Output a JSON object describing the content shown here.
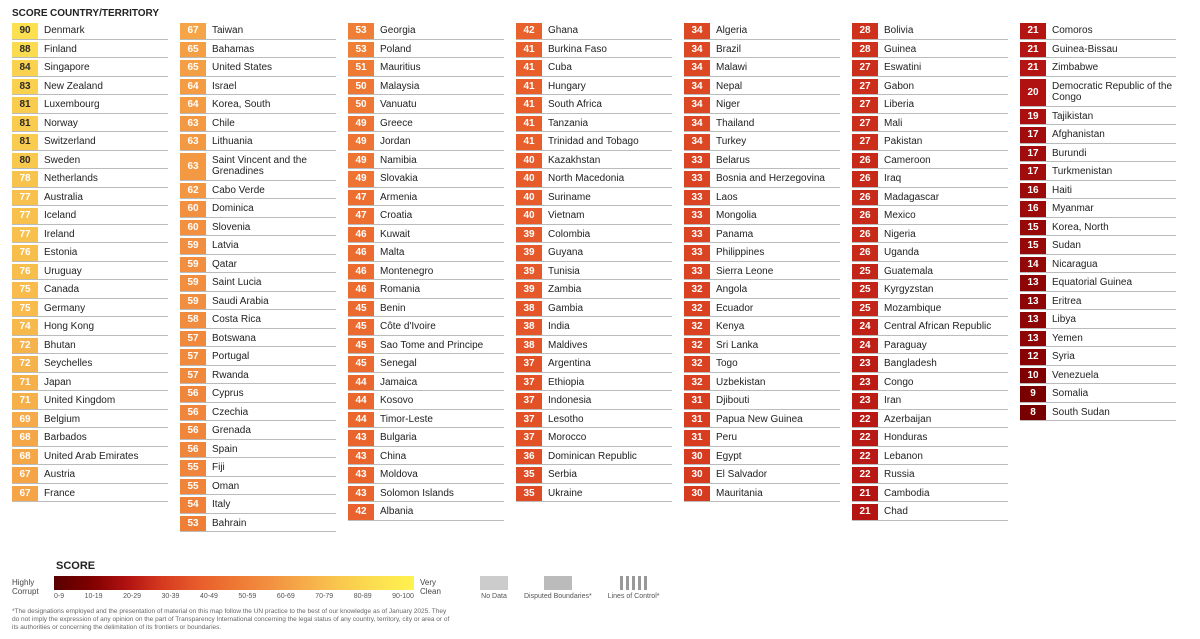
{
  "header": {
    "score": "SCORE",
    "country": "COUNTRY/TERRITORY"
  },
  "colorStops": [
    {
      "t": 0,
      "c": "#5a0000"
    },
    {
      "t": 10,
      "c": "#7e0000"
    },
    {
      "t": 20,
      "c": "#b01111"
    },
    {
      "t": 30,
      "c": "#d63a1f"
    },
    {
      "t": 40,
      "c": "#e85c2b"
    },
    {
      "t": 50,
      "c": "#ee7733"
    },
    {
      "t": 60,
      "c": "#f29040"
    },
    {
      "t": 70,
      "c": "#f6ad4a"
    },
    {
      "t": 80,
      "c": "#f9c94e"
    },
    {
      "t": 90,
      "c": "#fce050"
    },
    {
      "t": 100,
      "c": "#fff34f"
    }
  ],
  "scoreTextDarkThreshold": 80,
  "darkText": "#2a2a2a",
  "columns": [
    [
      {
        "s": 90,
        "c": "Denmark"
      },
      {
        "s": 88,
        "c": "Finland"
      },
      {
        "s": 84,
        "c": "Singapore"
      },
      {
        "s": 83,
        "c": "New Zealand"
      },
      {
        "s": 81,
        "c": "Luxembourg"
      },
      {
        "s": 81,
        "c": "Norway"
      },
      {
        "s": 81,
        "c": "Switzerland"
      },
      {
        "s": 80,
        "c": "Sweden"
      },
      {
        "s": 78,
        "c": "Netherlands"
      },
      {
        "s": 77,
        "c": "Australia"
      },
      {
        "s": 77,
        "c": "Iceland"
      },
      {
        "s": 77,
        "c": "Ireland"
      },
      {
        "s": 76,
        "c": "Estonia"
      },
      {
        "s": 76,
        "c": "Uruguay"
      },
      {
        "s": 75,
        "c": "Canada"
      },
      {
        "s": 75,
        "c": "Germany"
      },
      {
        "s": 74,
        "c": "Hong Kong"
      },
      {
        "s": 72,
        "c": "Bhutan"
      },
      {
        "s": 72,
        "c": "Seychelles"
      },
      {
        "s": 71,
        "c": "Japan"
      },
      {
        "s": 71,
        "c": "United Kingdom"
      },
      {
        "s": 69,
        "c": "Belgium"
      },
      {
        "s": 68,
        "c": "Barbados"
      },
      {
        "s": 68,
        "c": "United Arab Emirates"
      },
      {
        "s": 67,
        "c": "Austria"
      },
      {
        "s": 67,
        "c": "France"
      }
    ],
    [
      {
        "s": 67,
        "c": "Taiwan"
      },
      {
        "s": 65,
        "c": "Bahamas"
      },
      {
        "s": 65,
        "c": "United States"
      },
      {
        "s": 64,
        "c": "Israel"
      },
      {
        "s": 64,
        "c": "Korea, South"
      },
      {
        "s": 63,
        "c": "Chile"
      },
      {
        "s": 63,
        "c": "Lithuania"
      },
      {
        "s": 63,
        "c": "Saint Vincent and the Grenadines"
      },
      {
        "s": 62,
        "c": "Cabo Verde"
      },
      {
        "s": 60,
        "c": "Dominica"
      },
      {
        "s": 60,
        "c": "Slovenia"
      },
      {
        "s": 59,
        "c": "Latvia"
      },
      {
        "s": 59,
        "c": "Qatar"
      },
      {
        "s": 59,
        "c": "Saint Lucia"
      },
      {
        "s": 59,
        "c": "Saudi Arabia"
      },
      {
        "s": 58,
        "c": "Costa Rica"
      },
      {
        "s": 57,
        "c": "Botswana"
      },
      {
        "s": 57,
        "c": "Portugal"
      },
      {
        "s": 57,
        "c": "Rwanda"
      },
      {
        "s": 56,
        "c": "Cyprus"
      },
      {
        "s": 56,
        "c": "Czechia"
      },
      {
        "s": 56,
        "c": "Grenada"
      },
      {
        "s": 56,
        "c": "Spain"
      },
      {
        "s": 55,
        "c": "Fiji"
      },
      {
        "s": 55,
        "c": "Oman"
      },
      {
        "s": 54,
        "c": "Italy"
      },
      {
        "s": 53,
        "c": "Bahrain"
      }
    ],
    [
      {
        "s": 53,
        "c": "Georgia"
      },
      {
        "s": 53,
        "c": "Poland"
      },
      {
        "s": 51,
        "c": "Mauritius"
      },
      {
        "s": 50,
        "c": "Malaysia"
      },
      {
        "s": 50,
        "c": "Vanuatu"
      },
      {
        "s": 49,
        "c": "Greece"
      },
      {
        "s": 49,
        "c": "Jordan"
      },
      {
        "s": 49,
        "c": "Namibia"
      },
      {
        "s": 49,
        "c": "Slovakia"
      },
      {
        "s": 47,
        "c": "Armenia"
      },
      {
        "s": 47,
        "c": "Croatia"
      },
      {
        "s": 46,
        "c": "Kuwait"
      },
      {
        "s": 46,
        "c": "Malta"
      },
      {
        "s": 46,
        "c": "Montenegro"
      },
      {
        "s": 46,
        "c": "Romania"
      },
      {
        "s": 45,
        "c": "Benin"
      },
      {
        "s": 45,
        "c": "Côte d'Ivoire"
      },
      {
        "s": 45,
        "c": "Sao Tome and Principe"
      },
      {
        "s": 45,
        "c": "Senegal"
      },
      {
        "s": 44,
        "c": "Jamaica"
      },
      {
        "s": 44,
        "c": "Kosovo"
      },
      {
        "s": 44,
        "c": "Timor-Leste"
      },
      {
        "s": 43,
        "c": "Bulgaria"
      },
      {
        "s": 43,
        "c": "China"
      },
      {
        "s": 43,
        "c": "Moldova"
      },
      {
        "s": 43,
        "c": "Solomon Islands"
      },
      {
        "s": 42,
        "c": "Albania"
      }
    ],
    [
      {
        "s": 42,
        "c": "Ghana"
      },
      {
        "s": 41,
        "c": "Burkina Faso"
      },
      {
        "s": 41,
        "c": "Cuba"
      },
      {
        "s": 41,
        "c": "Hungary"
      },
      {
        "s": 41,
        "c": "South Africa"
      },
      {
        "s": 41,
        "c": "Tanzania"
      },
      {
        "s": 41,
        "c": "Trinidad and Tobago"
      },
      {
        "s": 40,
        "c": "Kazakhstan"
      },
      {
        "s": 40,
        "c": "North Macedonia"
      },
      {
        "s": 40,
        "c": "Suriname"
      },
      {
        "s": 40,
        "c": "Vietnam"
      },
      {
        "s": 39,
        "c": "Colombia"
      },
      {
        "s": 39,
        "c": "Guyana"
      },
      {
        "s": 39,
        "c": "Tunisia"
      },
      {
        "s": 39,
        "c": "Zambia"
      },
      {
        "s": 38,
        "c": "Gambia"
      },
      {
        "s": 38,
        "c": "India"
      },
      {
        "s": 38,
        "c": "Maldives"
      },
      {
        "s": 37,
        "c": "Argentina"
      },
      {
        "s": 37,
        "c": "Ethiopia"
      },
      {
        "s": 37,
        "c": "Indonesia"
      },
      {
        "s": 37,
        "c": "Lesotho"
      },
      {
        "s": 37,
        "c": "Morocco"
      },
      {
        "s": 36,
        "c": "Dominican Republic"
      },
      {
        "s": 35,
        "c": "Serbia"
      },
      {
        "s": 35,
        "c": "Ukraine"
      }
    ],
    [
      {
        "s": 34,
        "c": "Algeria"
      },
      {
        "s": 34,
        "c": "Brazil"
      },
      {
        "s": 34,
        "c": "Malawi"
      },
      {
        "s": 34,
        "c": "Nepal"
      },
      {
        "s": 34,
        "c": "Niger"
      },
      {
        "s": 34,
        "c": "Thailand"
      },
      {
        "s": 34,
        "c": "Turkey"
      },
      {
        "s": 33,
        "c": "Belarus"
      },
      {
        "s": 33,
        "c": "Bosnia and Herzegovina"
      },
      {
        "s": 33,
        "c": "Laos"
      },
      {
        "s": 33,
        "c": "Mongolia"
      },
      {
        "s": 33,
        "c": "Panama"
      },
      {
        "s": 33,
        "c": "Philippines"
      },
      {
        "s": 33,
        "c": "Sierra Leone"
      },
      {
        "s": 32,
        "c": "Angola"
      },
      {
        "s": 32,
        "c": "Ecuador"
      },
      {
        "s": 32,
        "c": "Kenya"
      },
      {
        "s": 32,
        "c": "Sri Lanka"
      },
      {
        "s": 32,
        "c": "Togo"
      },
      {
        "s": 32,
        "c": "Uzbekistan"
      },
      {
        "s": 31,
        "c": "Djibouti"
      },
      {
        "s": 31,
        "c": "Papua New Guinea"
      },
      {
        "s": 31,
        "c": "Peru"
      },
      {
        "s": 30,
        "c": "Egypt"
      },
      {
        "s": 30,
        "c": "El Salvador"
      },
      {
        "s": 30,
        "c": "Mauritania"
      }
    ],
    [
      {
        "s": 28,
        "c": "Bolivia"
      },
      {
        "s": 28,
        "c": "Guinea"
      },
      {
        "s": 27,
        "c": "Eswatini"
      },
      {
        "s": 27,
        "c": "Gabon"
      },
      {
        "s": 27,
        "c": "Liberia"
      },
      {
        "s": 27,
        "c": "Mali"
      },
      {
        "s": 27,
        "c": "Pakistan"
      },
      {
        "s": 26,
        "c": "Cameroon"
      },
      {
        "s": 26,
        "c": "Iraq"
      },
      {
        "s": 26,
        "c": "Madagascar"
      },
      {
        "s": 26,
        "c": "Mexico"
      },
      {
        "s": 26,
        "c": "Nigeria"
      },
      {
        "s": 26,
        "c": "Uganda"
      },
      {
        "s": 25,
        "c": "Guatemala"
      },
      {
        "s": 25,
        "c": "Kyrgyzstan"
      },
      {
        "s": 25,
        "c": "Mozambique"
      },
      {
        "s": 24,
        "c": "Central African Republic"
      },
      {
        "s": 24,
        "c": "Paraguay"
      },
      {
        "s": 23,
        "c": "Bangladesh"
      },
      {
        "s": 23,
        "c": "Congo"
      },
      {
        "s": 23,
        "c": "Iran"
      },
      {
        "s": 22,
        "c": "Azerbaijan"
      },
      {
        "s": 22,
        "c": "Honduras"
      },
      {
        "s": 22,
        "c": "Lebanon"
      },
      {
        "s": 22,
        "c": "Russia"
      },
      {
        "s": 21,
        "c": "Cambodia"
      },
      {
        "s": 21,
        "c": "Chad"
      }
    ],
    [
      {
        "s": 21,
        "c": "Comoros"
      },
      {
        "s": 21,
        "c": "Guinea-Bissau"
      },
      {
        "s": 21,
        "c": "Zimbabwe"
      },
      {
        "s": 20,
        "c": "Democratic Republic of the Congo"
      },
      {
        "s": 19,
        "c": "Tajikistan"
      },
      {
        "s": 17,
        "c": "Afghanistan"
      },
      {
        "s": 17,
        "c": "Burundi"
      },
      {
        "s": 17,
        "c": "Turkmenistan"
      },
      {
        "s": 16,
        "c": "Haiti"
      },
      {
        "s": 16,
        "c": "Myanmar"
      },
      {
        "s": 15,
        "c": "Korea, North"
      },
      {
        "s": 15,
        "c": "Sudan"
      },
      {
        "s": 14,
        "c": "Nicaragua"
      },
      {
        "s": 13,
        "c": "Equatorial Guinea"
      },
      {
        "s": 13,
        "c": "Eritrea"
      },
      {
        "s": 13,
        "c": "Libya"
      },
      {
        "s": 13,
        "c": "Yemen"
      },
      {
        "s": 12,
        "c": "Syria"
      },
      {
        "s": 10,
        "c": "Venezuela"
      },
      {
        "s": 9,
        "c": "Somalia"
      },
      {
        "s": 8,
        "c": "South Sudan"
      }
    ]
  ],
  "legend": {
    "title": "SCORE",
    "left": "Highly Corrupt",
    "right": "Very Clean",
    "ticks": [
      "0-9",
      "10-19",
      "20-29",
      "30-39",
      "40-49",
      "50-59",
      "60-69",
      "70-79",
      "80-89",
      "90-100"
    ],
    "nodata": "No Data",
    "disputed": "Disputed Boundaries*",
    "lines": "Lines of Control*"
  },
  "footnote": "*The designations employed and the presentation of material on this map follow the UN practice to the best of our knowledge as of January 2025. They do not imply the expression of any opinion on the part of Transparency International concerning the legal status of any country, territory, city or area or of its authorities or concerning the delimitation of its frontiers or boundaries."
}
